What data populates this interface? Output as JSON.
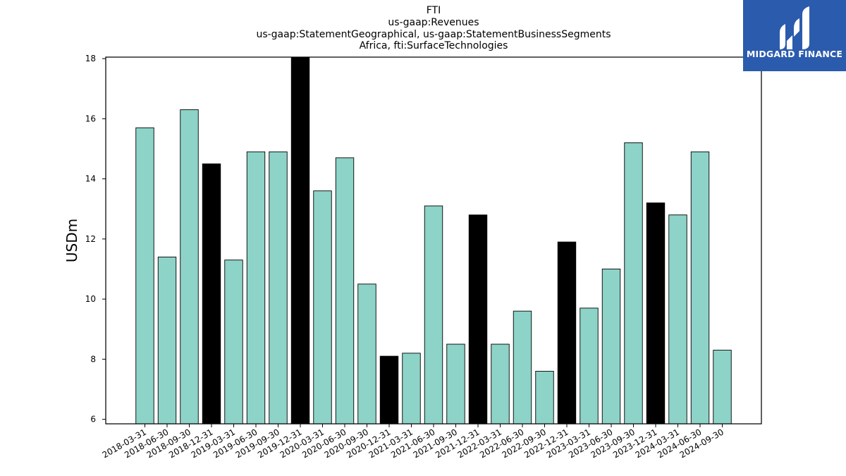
{
  "chart_data": {
    "type": "bar",
    "title_lines": [
      "FTI",
      "us-gaap:Revenues",
      "us-gaap:StatementGeographical, us-gaap:StatementBusinessSegments",
      "Africa, fti:SurfaceTechnologies"
    ],
    "xlabel": "",
    "ylabel": "USDm",
    "ylim": [
      5.85,
      18.05
    ],
    "yticks": [
      6,
      8,
      10,
      12,
      14,
      16,
      18
    ],
    "grid": false,
    "categories": [
      "2018-03-31",
      "2018-06-30",
      "2018-09-30",
      "2018-12-31",
      "2019-03-31",
      "2019-06-30",
      "2019-09-30",
      "2019-12-31",
      "2020-03-31",
      "2020-06-30",
      "2020-09-30",
      "2020-12-31",
      "2021-03-31",
      "2021-06-30",
      "2021-09-30",
      "2021-12-31",
      "2022-03-31",
      "2022-06-30",
      "2022-09-30",
      "2022-12-31",
      "2023-03-31",
      "2023-06-30",
      "2023-09-30",
      "2023-12-31",
      "2024-03-31",
      "2024-06-30",
      "2024-09-30"
    ],
    "values": [
      15.7,
      11.4,
      16.3,
      14.5,
      11.3,
      14.9,
      14.9,
      18.1,
      13.6,
      14.7,
      10.5,
      8.1,
      8.2,
      13.1,
      8.5,
      12.8,
      8.5,
      9.6,
      7.6,
      11.9,
      9.7,
      11.0,
      15.2,
      13.2,
      12.8,
      14.9,
      8.3
    ],
    "highlight_indices": [
      3,
      7,
      11,
      15,
      19,
      23
    ],
    "colors": {
      "bar": "#8dd3c7",
      "highlight": "#000000",
      "edge": "#000000"
    }
  },
  "logo": {
    "text": "MIDGARD FINANCE",
    "background": "#2b5bad"
  }
}
